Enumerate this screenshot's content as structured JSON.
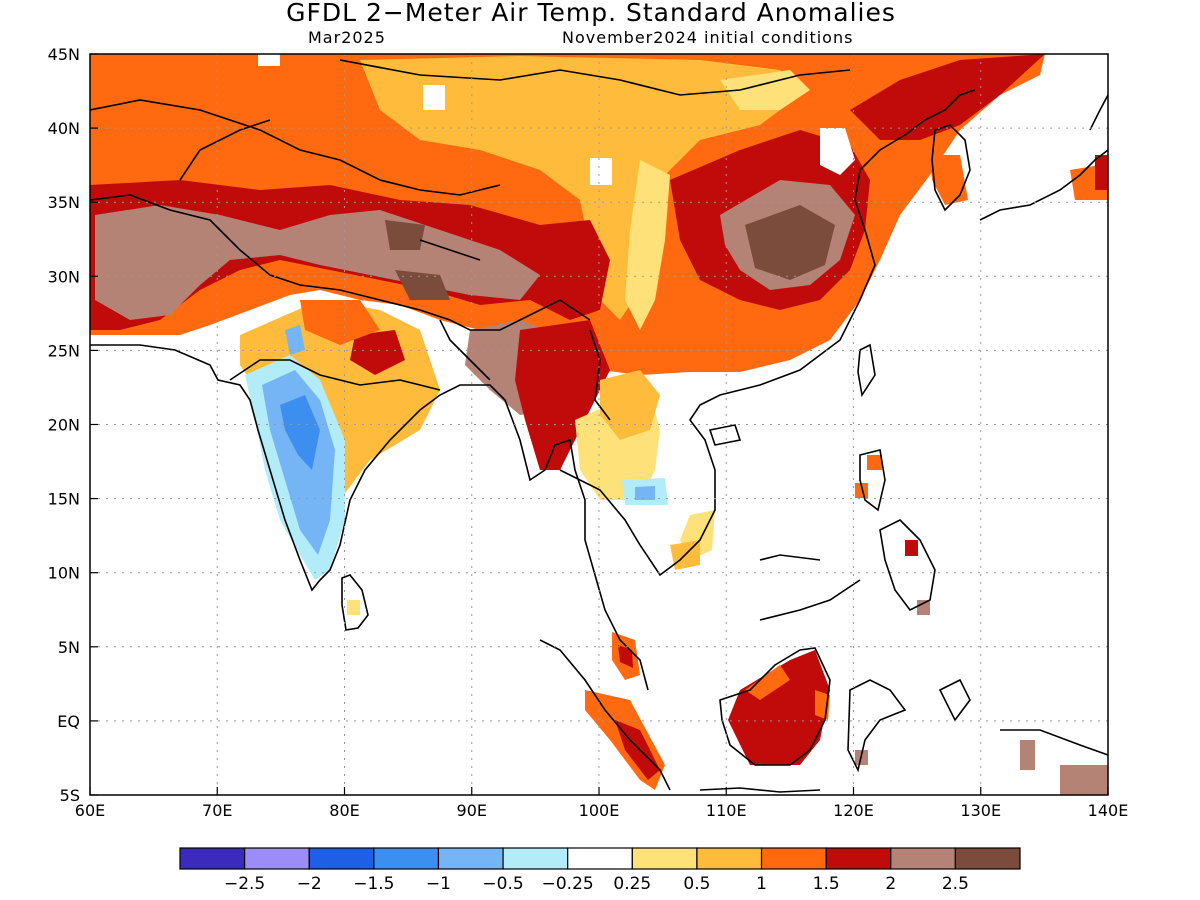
{
  "title": "GFDL 2−Meter Air Temp. Standard Anomalies",
  "subtitle_left": "Mar2025",
  "subtitle_right": "November2024 initial conditions",
  "map": {
    "lon_range": [
      60,
      140
    ],
    "lat_range": [
      -5,
      45
    ],
    "x_ticks": [
      {
        "value": 60,
        "label": "60E"
      },
      {
        "value": 70,
        "label": "70E"
      },
      {
        "value": 80,
        "label": "80E"
      },
      {
        "value": 90,
        "label": "90E"
      },
      {
        "value": 100,
        "label": "100E"
      },
      {
        "value": 110,
        "label": "110E"
      },
      {
        "value": 120,
        "label": "120E"
      },
      {
        "value": 130,
        "label": "130E"
      },
      {
        "value": 140,
        "label": "140E"
      }
    ],
    "y_ticks": [
      {
        "value": 45,
        "label": "45N"
      },
      {
        "value": 40,
        "label": "40N"
      },
      {
        "value": 35,
        "label": "35N"
      },
      {
        "value": 30,
        "label": "30N"
      },
      {
        "value": 25,
        "label": "25N"
      },
      {
        "value": 20,
        "label": "20N"
      },
      {
        "value": 15,
        "label": "15N"
      },
      {
        "value": 10,
        "label": "10N"
      },
      {
        "value": 5,
        "label": "5N"
      },
      {
        "value": 0,
        "label": "EQ"
      },
      {
        "value": -5,
        "label": "5S"
      }
    ],
    "grid": "dotted"
  },
  "colorbar": {
    "colors": [
      "#3a2bbd",
      "#9c8cf5",
      "#1f5fe6",
      "#3d8fef",
      "#76b5f5",
      "#b2ecf8",
      "#ffffff",
      "#ffe17a",
      "#ffbc3c",
      "#ff6a10",
      "#c10a0a",
      "#b58276",
      "#7b4b3c"
    ],
    "labels": [
      "−2.5",
      "−2",
      "−1.5",
      "−1",
      "−0.5",
      "−0.25",
      "0.25",
      "0.5",
      "1",
      "1.5",
      "2",
      "2.5"
    ]
  }
}
